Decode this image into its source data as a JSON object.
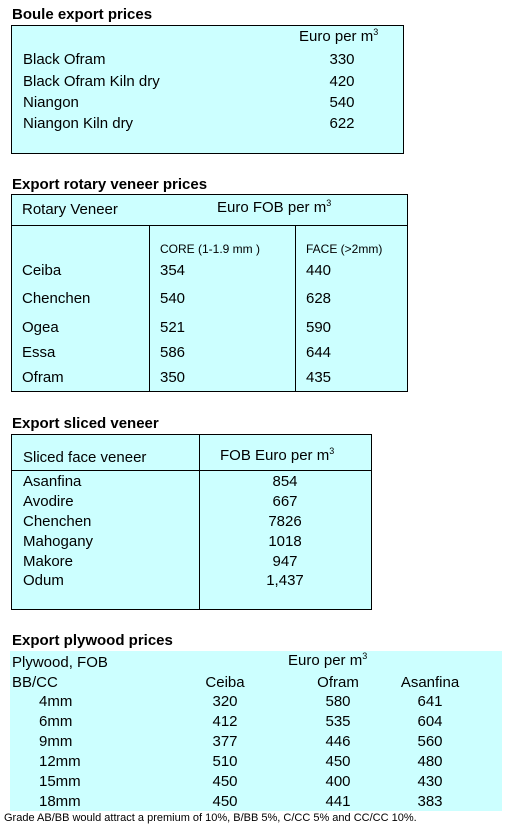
{
  "boule": {
    "title": "Boule export prices",
    "unit_label": "Euro per m",
    "unit_sup": "3",
    "rows": [
      {
        "name": "Black Ofram",
        "price": "330"
      },
      {
        "name": "Black Ofram  Kiln dry",
        "price": "420"
      },
      {
        "name": "Niangon",
        "price": "540"
      },
      {
        "name": "Niangon Kiln dry",
        "price": "622"
      }
    ]
  },
  "rotary": {
    "title": "Export rotary veneer prices",
    "col_header": "Rotary Veneer",
    "unit_label": "Euro FOB  per m",
    "unit_sup": "3",
    "core_label": "CORE (1-1.9 mm )",
    "face_label": "FACE (>2mm)",
    "rows": [
      {
        "name": "Ceiba",
        "core": "354",
        "face": "440"
      },
      {
        "name": "Chenchen",
        "core": "540",
        "face": "628"
      },
      {
        "name": "Ogea",
        "core": "521",
        "face": "590"
      },
      {
        "name": "Essa",
        "core": "586",
        "face": "644"
      },
      {
        "name": "Ofram",
        "core": "350",
        "face": "435"
      }
    ]
  },
  "sliced": {
    "title": "Export sliced veneer",
    "col_header": "Sliced face veneer",
    "unit_label": "FOB Euro per m",
    "unit_sup": "3",
    "rows": [
      {
        "name": "Asanfina",
        "price": "854"
      },
      {
        "name": "Avodire",
        "price": "667"
      },
      {
        "name": "Chenchen",
        "price": "7826"
      },
      {
        "name": "Mahogany",
        "price": "1018"
      },
      {
        "name": "Makore",
        "price": "947"
      },
      {
        "name": "Odum",
        "price": "1,437"
      }
    ]
  },
  "plywood": {
    "title": "Export plywood prices",
    "header1": "Plywood, FOB",
    "unit_label": "Euro per m",
    "unit_sup": "3",
    "header2": "BB/CC",
    "columns": [
      "Ceiba",
      "Ofram",
      "Asanfina"
    ],
    "rows": [
      {
        "size": "4mm",
        "values": [
          "320",
          "580",
          "641"
        ]
      },
      {
        "size": "6mm",
        "values": [
          "412",
          "535",
          "604"
        ]
      },
      {
        "size": "9mm",
        "values": [
          "377",
          "446",
          "560"
        ]
      },
      {
        "size": "12mm",
        "values": [
          "510",
          "450",
          "480"
        ]
      },
      {
        "size": "15mm",
        "values": [
          "450",
          "400",
          "430"
        ]
      },
      {
        "size": "18mm",
        "values": [
          "450",
          "441",
          "383"
        ]
      }
    ],
    "footnote": "Grade AB/BB would attract a premium of 10%, B/BB 5%, C/CC 5% and CC/CC 10%."
  }
}
